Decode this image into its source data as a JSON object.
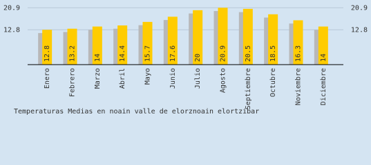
{
  "chart_data": {
    "type": "bar",
    "title": "Temperaturas Medias en noain valle de elorznoain elortzibar",
    "categories": [
      "Enero",
      "Febrero",
      "Marzo",
      "Abril",
      "Mayo",
      "Junio",
      "Julio",
      "Agosto",
      "Septiembre",
      "Octubre",
      "Noviembre",
      "Diciembre"
    ],
    "series": [
      {
        "color": "#b8b8b8",
        "values": [
          11.6,
          12.0,
          12.8,
          13.2,
          14.5,
          16.4,
          18.8,
          19.7,
          19.3,
          17.3,
          15.1,
          12.8
        ]
      },
      {
        "color": "#ffcc00",
        "values": [
          12.8,
          13.2,
          14.0,
          14.4,
          15.7,
          17.6,
          20.0,
          20.9,
          20.5,
          18.5,
          16.3,
          14.0
        ]
      }
    ],
    "ylim": [
      0,
      23.5
    ],
    "yticks": [
      12.8,
      20.9
    ],
    "grid": true
  }
}
